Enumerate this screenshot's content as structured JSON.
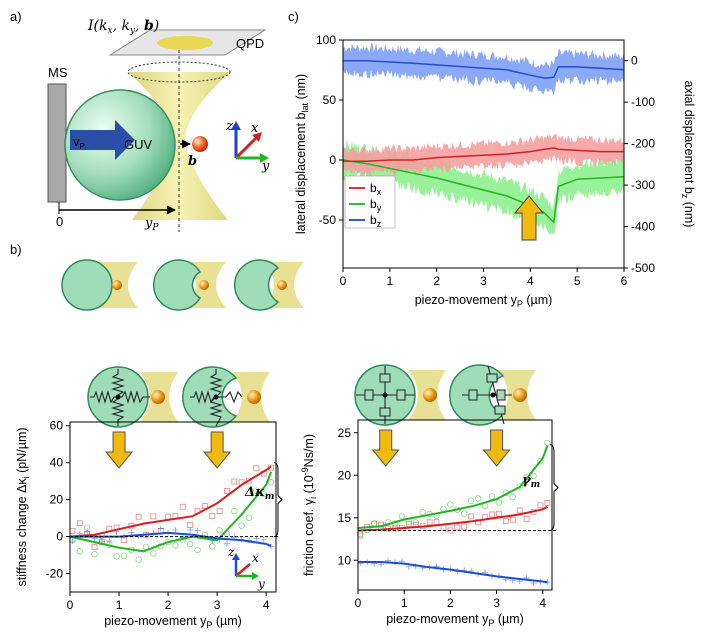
{
  "panel_a": {
    "label": "a)",
    "intensity_label": "I(k",
    "intensity_sub_x": "x",
    "intensity_sep1": ", k",
    "intensity_sub_y": "y",
    "intensity_sep2": ", ",
    "intensity_b": "b",
    "intensity_close": ")",
    "qpd_label": "QPD",
    "ms_label": "MS",
    "guv_label": "GUV",
    "vp_label": "v",
    "vp_sub": "P",
    "b_label": "b",
    "zero_label": "0",
    "yp_label": "y",
    "yp_sub": "P",
    "axis_z": "z",
    "axis_x": "x",
    "axis_y": "y"
  },
  "panel_b": {
    "label": "b)"
  },
  "panel_c": {
    "label": "c)"
  },
  "colors": {
    "red": "#d42020",
    "green": "#22b422",
    "blue": "#1f4fcf",
    "yellow": "#f2b90f"
  },
  "chart_data": [
    {
      "id": "c",
      "type": "line",
      "xlabel_main": "piezo-movement y",
      "xlabel_sub": "P",
      "xlabel_unit": " (µm)",
      "ylabel_left_main": "lateral displacement b",
      "ylabel_left_sub": "lat",
      "ylabel_left_unit": " (nm)",
      "ylabel_right_main": "axial displacement b",
      "ylabel_right_sub": "z",
      "ylabel_right_unit": " (nm)",
      "xlim": [
        0,
        6
      ],
      "ylim_left": [
        -90,
        100
      ],
      "ylim_right": [
        -500,
        50
      ],
      "xticks": [
        "0",
        "1",
        "2",
        "3",
        "4",
        "5",
        "6"
      ],
      "yticks_left": [
        "-50",
        "0",
        "50",
        "100"
      ],
      "yticks_right": [
        "-500",
        "-400",
        "-300",
        "-200",
        "-100",
        "0"
      ],
      "legend": [
        {
          "main": "b",
          "sub": "x"
        },
        {
          "main": "b",
          "sub": "y"
        },
        {
          "main": "b",
          "sub": "z"
        }
      ],
      "x": [
        0,
        0.5,
        1,
        1.5,
        2,
        2.5,
        3,
        3.5,
        4,
        4.3,
        4.5,
        4.6,
        5,
        5.5,
        6
      ],
      "series": [
        {
          "name": "b_x",
          "axis": "left",
          "color": "red",
          "band": 12,
          "values": [
            -1,
            -1,
            0,
            0,
            2,
            3,
            4,
            5,
            7,
            9,
            10,
            9,
            8,
            7,
            7
          ]
        },
        {
          "name": "b_y",
          "axis": "left",
          "color": "green",
          "band": 16,
          "values": [
            0,
            -3,
            -7,
            -11,
            -15,
            -20,
            -25,
            -30,
            -38,
            -44,
            -52,
            -22,
            -16,
            -15,
            -14
          ]
        },
        {
          "name": "b_z",
          "axis": "right",
          "color": "blue",
          "band": 40,
          "values": [
            0,
            0,
            -3,
            -6,
            -10,
            -14,
            -18,
            -22,
            -35,
            -42,
            -40,
            -15,
            -15,
            -18,
            -22
          ]
        }
      ]
    },
    {
      "id": "b_stiffness",
      "type": "scatter",
      "xlabel_main": "piezo-movement y",
      "xlabel_sub": "P",
      "xlabel_unit": " (µm)",
      "ylabel_main": "stiffness change Δκ",
      "ylabel_sub": "i",
      "ylabel_unit": " (pN/µm)",
      "annotation": "Δκ",
      "annotation_sub": "m",
      "xlim": [
        0,
        4.2
      ],
      "ylim": [
        -30,
        62
      ],
      "xticks": [
        "0",
        "1",
        "2",
        "3",
        "4"
      ],
      "yticks": [
        "-20",
        "0",
        "20",
        "40",
        "60"
      ],
      "x": [
        0,
        0.5,
        1,
        1.5,
        2,
        2.5,
        3,
        3.5,
        4,
        4.1
      ],
      "series": [
        {
          "name": "x",
          "color": "red",
          "values": [
            0,
            1,
            4,
            7,
            9,
            11,
            18,
            28,
            36,
            38
          ]
        },
        {
          "name": "y",
          "color": "green",
          "values": [
            0,
            -3,
            -6,
            -8,
            -3,
            0,
            -2,
            12,
            28,
            35
          ]
        },
        {
          "name": "z",
          "color": "blue",
          "values": [
            0,
            0,
            0,
            1,
            2,
            1,
            -1,
            -2,
            -4,
            -5
          ]
        }
      ]
    },
    {
      "id": "b_friction",
      "type": "scatter",
      "xlabel_main": "piezo-movement y",
      "xlabel_sub": "P",
      "xlabel_unit": " (µm)",
      "ylabel_main": "friction coef. γ",
      "ylabel_sub": "i",
      "ylabel_unit": " (10",
      "ylabel_exp": "-9",
      "ylabel_unit2": "Ns/m)",
      "annotation": "γ",
      "annotation_sub": "m",
      "xlim": [
        0,
        4.2
      ],
      "ylim": [
        6.5,
        26.5
      ],
      "xticks": [
        "0",
        "1",
        "2",
        "3",
        "4"
      ],
      "yticks": [
        "10",
        "15",
        "20",
        "25"
      ],
      "x": [
        0,
        0.5,
        1,
        1.5,
        2,
        2.5,
        3,
        3.5,
        4,
        4.1
      ],
      "series": [
        {
          "name": "x",
          "color": "red",
          "values": [
            13.5,
            13.6,
            13.8,
            14.0,
            14.3,
            14.6,
            15.0,
            15.4,
            16.0,
            16.3
          ]
        },
        {
          "name": "y",
          "color": "green",
          "values": [
            13.8,
            14.0,
            14.8,
            15.3,
            15.8,
            16.4,
            17.2,
            18.6,
            22.0,
            23.5
          ]
        },
        {
          "name": "z",
          "color": "blue",
          "values": [
            9.8,
            9.8,
            9.6,
            9.2,
            8.9,
            8.5,
            8.1,
            7.8,
            7.5,
            7.4
          ]
        }
      ]
    }
  ]
}
